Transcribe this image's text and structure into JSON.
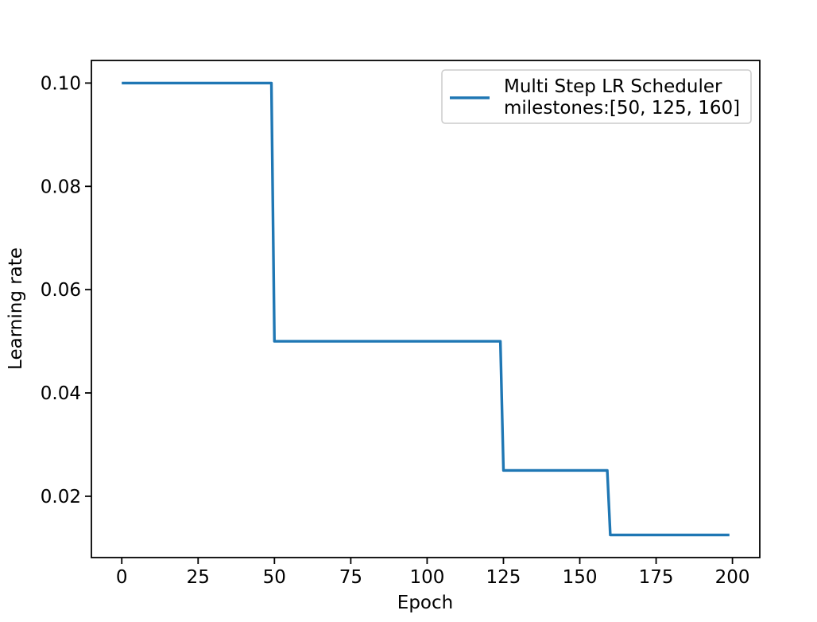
{
  "chart_data": {
    "type": "line",
    "title": "",
    "xlabel": "Epoch",
    "ylabel": "Learning rate",
    "grid": false,
    "line_color": "#1f77b4",
    "series": [
      {
        "name": "Multi Step LR Scheduler milestones:[50, 125, 160]",
        "color": "#1f77b4",
        "points": [
          [
            0,
            0.1
          ],
          [
            49,
            0.1
          ],
          [
            50,
            0.05
          ],
          [
            124,
            0.05
          ],
          [
            125,
            0.025
          ],
          [
            159,
            0.025
          ],
          [
            160,
            0.0125
          ],
          [
            199,
            0.0125
          ]
        ]
      }
    ],
    "milestones": [
      50,
      125,
      160
    ],
    "lr_levels": [
      0.1,
      0.05,
      0.025,
      0.0125
    ],
    "xticks": [
      0,
      25,
      50,
      75,
      100,
      125,
      150,
      175,
      200
    ],
    "xtick_labels": [
      "0",
      "25",
      "50",
      "75",
      "100",
      "125",
      "150",
      "175",
      "200"
    ],
    "yticks": [
      0.02,
      0.04,
      0.06,
      0.08,
      0.1
    ],
    "ytick_labels": [
      "0.02",
      "0.04",
      "0.06",
      "0.08",
      "0.10"
    ],
    "xlim": [
      -9.95,
      208.95
    ],
    "ylim": [
      0.008125,
      0.104375
    ],
    "legend": {
      "position": "upper right",
      "lines": [
        "Multi Step LR Scheduler",
        "milestones:[50, 125, 160]"
      ]
    }
  }
}
